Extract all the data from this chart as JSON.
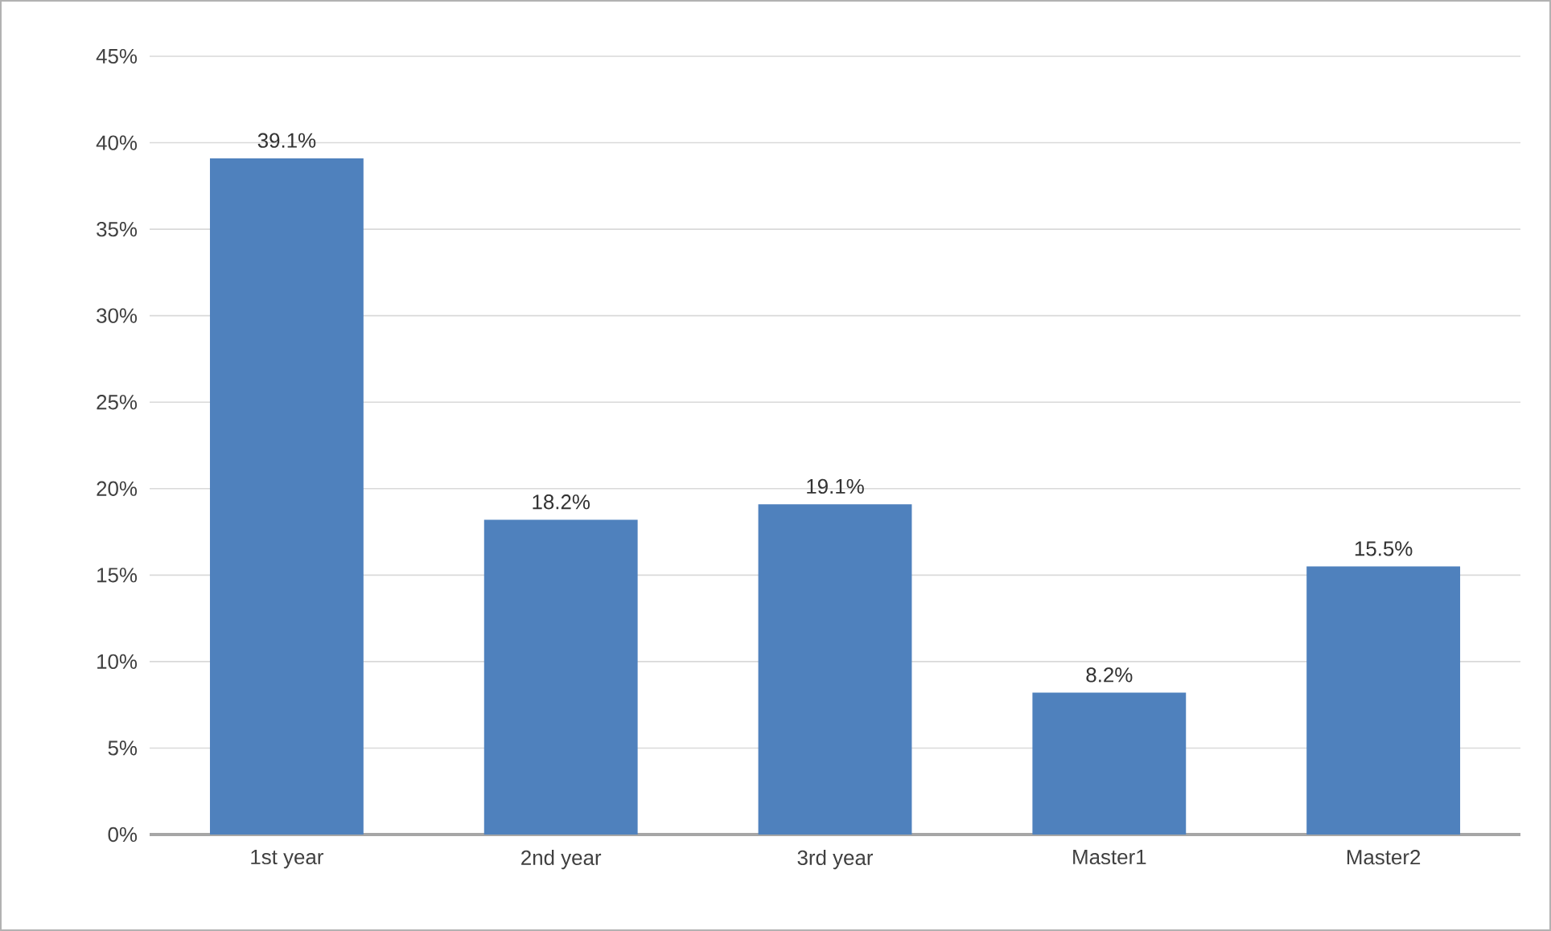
{
  "chart_data": {
    "type": "bar",
    "categories": [
      "1st year",
      "2nd year",
      "3rd year",
      "Master1",
      "Master2"
    ],
    "values": [
      39.1,
      18.2,
      19.1,
      8.2,
      15.5
    ],
    "value_labels": [
      "39.1%",
      "18.2%",
      "19.1%",
      "8.2%",
      "15.5%"
    ],
    "color": "#4f81bd",
    "ylim": [
      0,
      45
    ],
    "yticks": [
      {
        "value": 0,
        "label": "0%"
      },
      {
        "value": 5,
        "label": "5%"
      },
      {
        "value": 10,
        "label": "10%"
      },
      {
        "value": 15,
        "label": "15%"
      },
      {
        "value": 20,
        "label": "20%"
      },
      {
        "value": 25,
        "label": "25%"
      },
      {
        "value": 30,
        "label": "30%"
      },
      {
        "value": 35,
        "label": "35%"
      },
      {
        "value": 40,
        "label": "40%"
      },
      {
        "value": 45,
        "label": "45%"
      }
    ],
    "grid": "y"
  }
}
